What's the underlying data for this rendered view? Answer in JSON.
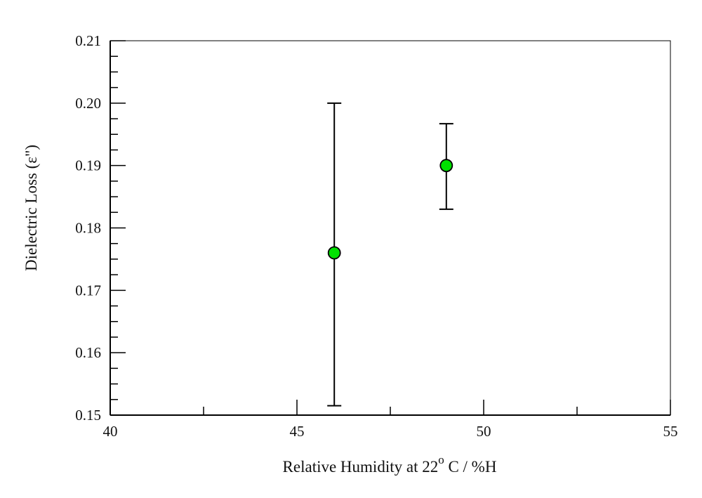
{
  "chart_data": {
    "type": "scatter",
    "xlabel": "Relative Humidity  at 22° C /  %H",
    "xlabel_parts": {
      "main": "Relative Humidity  at 22",
      "superscript": "o",
      "tail": " C /  %H"
    },
    "ylabel": "Dielectric Loss  (ε\")",
    "xlim": [
      40,
      55
    ],
    "ylim": [
      0.15,
      0.21
    ],
    "x_ticks": [
      "40",
      "45",
      "50",
      "55"
    ],
    "y_ticks": [
      "0.15",
      "0.16",
      "0.17",
      "0.18",
      "0.19",
      "0.20",
      "0.21"
    ],
    "grid": false,
    "points": [
      {
        "x": 46,
        "y": 0.176,
        "err_low": 0.1515,
        "err_high": 0.2
      },
      {
        "x": 49,
        "y": 0.19,
        "err_low": 0.183,
        "err_high": 0.1967
      }
    ],
    "marker_color": "#00e000",
    "marker_edge_color": "#000000"
  }
}
